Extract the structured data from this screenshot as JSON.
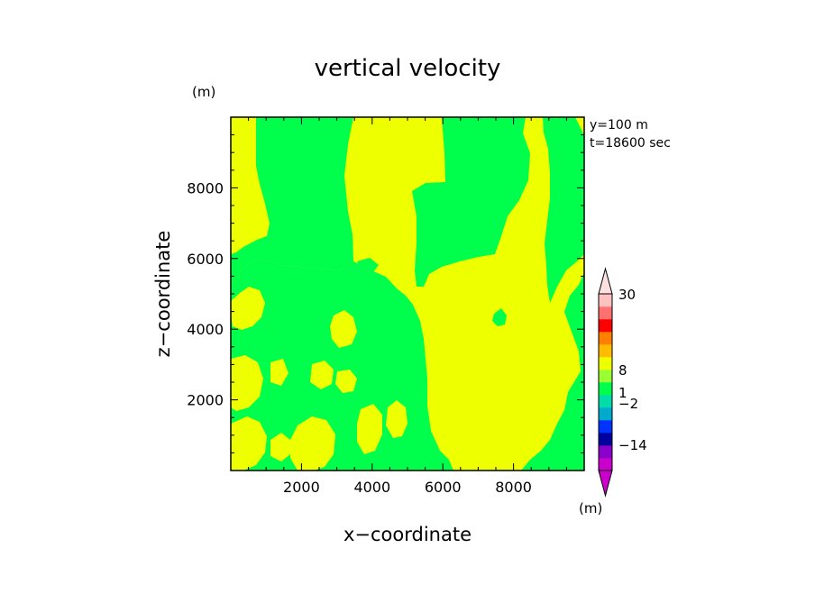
{
  "chart_data": {
    "type": "heatmap",
    "title": "vertical velocity",
    "xlabel": "x−coordinate",
    "ylabel": "z−coordinate",
    "y_unit": "(m)",
    "annotation_lines": [
      "y=100  m",
      "t=18600 sec"
    ],
    "xlim": [
      0,
      10000
    ],
    "ylim": [
      0,
      10000
    ],
    "x_ticks": [
      2000,
      4000,
      6000,
      8000
    ],
    "y_ticks": [
      2000,
      4000,
      6000,
      8000
    ],
    "x_tick_labels": [
      "2000",
      "4000",
      "6000",
      "8000"
    ],
    "y_tick_labels": [
      "2000",
      "4000",
      "6000",
      "8000"
    ],
    "grid": false,
    "background_color": "#eeff00",
    "regions": [
      {
        "name": "negative",
        "color": "#00ff4c"
      },
      {
        "name": "positive",
        "color": "#eeff00"
      }
    ],
    "colorbar": {
      "unit": "(m)",
      "labels": [
        "30",
        "8",
        "1",
        "−2",
        "−14"
      ],
      "label_values": [
        30,
        8,
        1,
        -2,
        -14
      ],
      "levels": [
        -30,
        -14,
        -8,
        -4,
        -2,
        -1,
        -0.5,
        0,
        0.5,
        1,
        2,
        4,
        8,
        14,
        30
      ],
      "colors": [
        "#cc00cc",
        "#8a00cc",
        "#0000a0",
        "#0033ff",
        "#00aacc",
        "#00ddaa",
        "#00ff4c",
        "#99ff33",
        "#eeff00",
        "#ffbb00",
        "#ff7f00",
        "#ff0000",
        "#ff7070",
        "#ffc0c0"
      ],
      "upper_arrow_color": "#ffe0e0",
      "lower_arrow_color": "#cc00cc"
    }
  }
}
